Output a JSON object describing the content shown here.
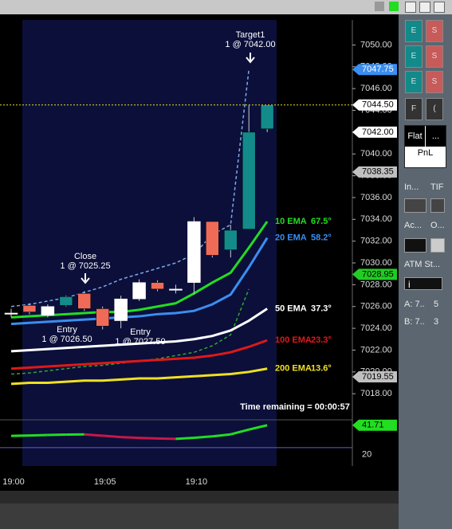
{
  "chart_data": {
    "type": "candlestick",
    "categories": [
      "19:00",
      null,
      null,
      null,
      null,
      "19:05",
      null,
      null,
      null,
      null,
      "19:10",
      null,
      null,
      null,
      null
    ],
    "open": [
      7025.4,
      7026.1,
      7025.2,
      7026.1,
      7027.2,
      7025.8,
      7024.7,
      7026.7,
      7028.2,
      7027.6,
      7028.2,
      7033.8,
      7031.2,
      7033.1,
      7042.3
    ],
    "high": [
      7025.8,
      7026.3,
      7026.2,
      7027.0,
      7027.4,
      7026.0,
      7027.0,
      7028.5,
      7028.4,
      7028.0,
      7034.2,
      7033.8,
      7033.5,
      7044.5,
      7044.5
    ],
    "low": [
      7025.0,
      7025.3,
      7025.0,
      7026.0,
      7025.6,
      7023.9,
      7024.0,
      7026.5,
      7027.4,
      7027.2,
      7027.1,
      7030.5,
      7030.5,
      7033.1,
      7042.0
    ],
    "close": [
      7025.4,
      7025.5,
      7026.0,
      7026.9,
      7025.8,
      7024.2,
      7026.7,
      7028.2,
      7027.6,
      7027.6,
      7033.8,
      7030.7,
      7033.0,
      7042.0,
      7044.5
    ],
    "candle_colors": [
      "#ffffff",
      "#f06b57",
      "#ffffff",
      "#138b8b",
      "#f06b57",
      "#f06b57",
      "#ffffff",
      "#ffffff",
      "#f06b57",
      "#ffffff",
      "#ffffff",
      "#f06b57",
      "#138b8b",
      "#138b8b",
      "#138b8b"
    ],
    "ylim": [
      7015.6,
      7052.3
    ],
    "yticks": [
      {
        "value": 7018,
        "label": "7018.00"
      },
      {
        "value": 7020,
        "label": "7020.00"
      },
      {
        "value": 7022,
        "label": "7022.00"
      },
      {
        "value": 7024,
        "label": "7024.00"
      },
      {
        "value": 7026,
        "label": "7026.00"
      },
      {
        "value": 7028,
        "label": "7028.00"
      },
      {
        "value": 7030,
        "label": "7030.00"
      },
      {
        "value": 7032,
        "label": "7032.00"
      },
      {
        "value": 7034,
        "label": "7034.00"
      },
      {
        "value": 7036,
        "label": "7036.00"
      },
      {
        "value": 7038,
        "label": "7038.00"
      },
      {
        "value": 7040,
        "label": "7040.00"
      },
      {
        "value": 7042,
        "label": "7042.00"
      },
      {
        "value": 7044,
        "label": "7044.00"
      },
      {
        "value": 7046,
        "label": "7046.00"
      },
      {
        "value": 7048,
        "label": "7048.00"
      },
      {
        "value": 7050,
        "label": "7050.00"
      }
    ],
    "lines": [
      {
        "name": "10 EMA",
        "label": "67.5°",
        "color": "#22dd22",
        "values": [
          7025.0,
          7025.1,
          7025.2,
          7025.3,
          7025.4,
          7025.5,
          7025.5,
          7025.7,
          7026.0,
          7026.3,
          7027.2,
          7028.2,
          7029.1,
          7031.4,
          7033.8
        ]
      },
      {
        "name": "20 EMA",
        "label": "58.2°",
        "color": "#3a8ef0",
        "values": [
          7024.4,
          7024.5,
          7024.6,
          7024.7,
          7024.8,
          7024.9,
          7025.0,
          7025.1,
          7025.3,
          7025.4,
          7025.6,
          7026.2,
          7027.1,
          7029.6,
          7032.3
        ]
      },
      {
        "name": "50 EMA",
        "label": "37.3°",
        "color": "#ffffff",
        "values": [
          7021.9,
          7022.0,
          7022.1,
          7022.2,
          7022.3,
          7022.4,
          7022.5,
          7022.6,
          7022.7,
          7022.8,
          7023.0,
          7023.3,
          7023.8,
          7024.7,
          7025.8
        ]
      },
      {
        "name": "100 EMA",
        "label": "23.3°",
        "color": "#e01818",
        "values": [
          7020.3,
          7020.4,
          7020.5,
          7020.6,
          7020.7,
          7020.8,
          7020.9,
          7021.0,
          7021.1,
          7021.2,
          7021.3,
          7021.5,
          7021.8,
          7022.3,
          7022.9
        ]
      },
      {
        "name": "200 EMA",
        "label": "13.6°",
        "color": "#f0e020",
        "values": [
          7018.9,
          7019.0,
          7019.0,
          7019.1,
          7019.2,
          7019.2,
          7019.3,
          7019.4,
          7019.4,
          7019.5,
          7019.6,
          7019.7,
          7019.8,
          7020.0,
          7020.3
        ]
      }
    ],
    "bands": [
      {
        "color": "#7fa8e8",
        "values": [
          7026.0,
          7026.2,
          7026.5,
          7026.8,
          7027.3,
          7027.8,
          7028.5,
          7029.0,
          7029.5,
          7030.0,
          7030.8,
          7032.6,
          7033.5,
          7047.75,
          null
        ]
      },
      {
        "color": "#2ea82e",
        "values": [
          7019.8,
          7019.9,
          7020.1,
          7020.3,
          7020.5,
          7020.6,
          7020.8,
          7021.0,
          7021.2,
          7021.5,
          7021.8,
          7022.4,
          7023.4,
          7027.6,
          null
        ]
      }
    ],
    "markers": [
      {
        "value": 7047.75,
        "label": "7047.75",
        "color": "#3a8ef0",
        "text_color": "#ffffff"
      },
      {
        "value": 7044.5,
        "label": "7044.50",
        "color": "#ffffff",
        "text_color": "#000000",
        "line": true
      },
      {
        "value": 7042,
        "label": "7042.00",
        "color": "#ffffff",
        "text_color": "#000000"
      },
      {
        "value": 7038.35,
        "label": "7038.35",
        "color": "#c0c0c0",
        "text_color": "#000000"
      },
      {
        "value": 7028.95,
        "label": "7028.95",
        "color": "#22cc22",
        "text_color": "#000000"
      },
      {
        "value": 7019.55,
        "label": "7019.55",
        "color": "#c0c0c0",
        "text_color": "#000000"
      }
    ],
    "annotations": [
      [
        "Target1",
        "1 @ 7042.00"
      ],
      [
        "Close",
        "1 @ 7025.25"
      ],
      [
        "Entry",
        "1 @ 7026.50"
      ],
      [
        "Entry",
        "1 @ 7027.50"
      ]
    ],
    "time_remaining": "Time remaining = 00:00:57",
    "indicator": {
      "ylim": [
        11.7,
        43.9
      ],
      "yticks": [
        20
      ],
      "values": [
        33.9,
        34.2,
        34.5,
        34.8,
        35.0,
        34.0,
        33.0,
        32.4,
        32.0,
        31.7,
        32.5,
        33.5,
        35.0,
        38.5,
        41.71
      ],
      "up_color": "#22dd22",
      "down_color": "#c8174a",
      "marker": {
        "value": 41.71,
        "label": "41.71"
      }
    }
  },
  "panel": {
    "buttons": [
      "E",
      "S",
      "E",
      "S",
      "E",
      "S",
      "F",
      "("
    ],
    "position": "Flat",
    "more": "...",
    "pnl": "PnL",
    "fields": [
      "In...",
      "TIF",
      "Ac...",
      "O...",
      "ATM St..."
    ],
    "atm": "i",
    "quotes": [
      "A: 7..",
      "5",
      "B: 7..",
      "3"
    ]
  }
}
